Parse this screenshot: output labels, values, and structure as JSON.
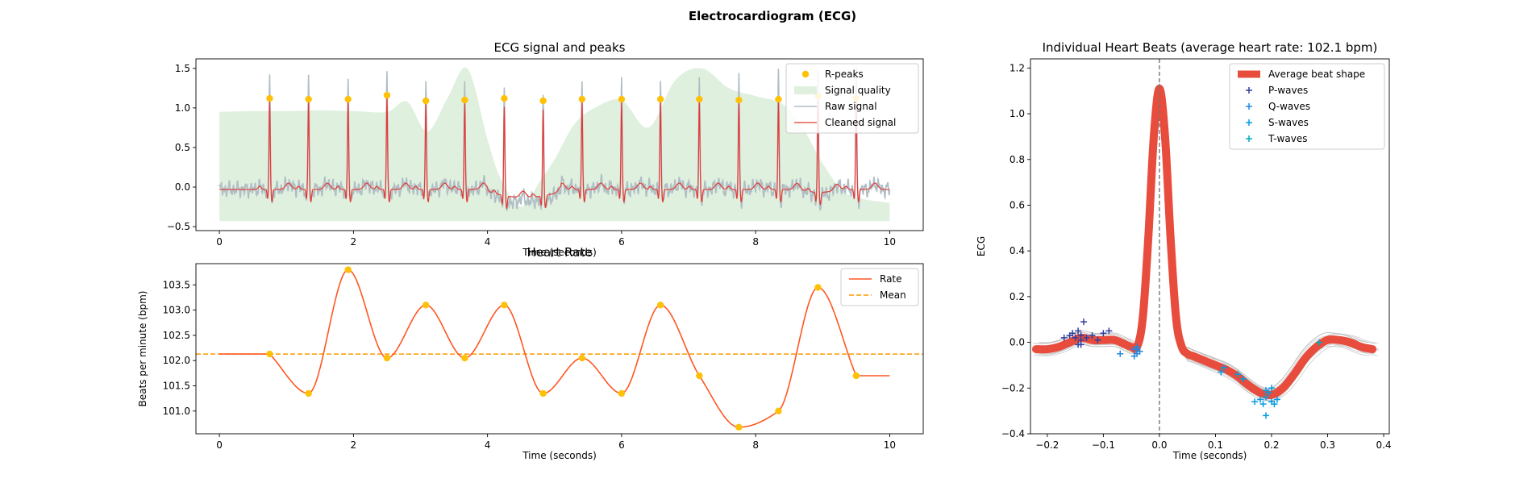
{
  "title": "Electrocardiogram (ECG)",
  "chart_data": [
    {
      "id": "ecg",
      "type": "line",
      "title": "ECG signal and peaks",
      "xlabel": "Time (seconds)",
      "ylabel": "",
      "xlim": [
        -0.35,
        10.5
      ],
      "ylim": [
        -0.55,
        1.62
      ],
      "xticks": [
        0,
        2,
        4,
        6,
        8,
        10
      ],
      "yticks": [
        -0.5,
        0.0,
        0.5,
        1.0,
        1.5
      ],
      "xtick_labels": [
        "0",
        "2",
        "4",
        "6",
        "8",
        "10"
      ],
      "ytick_labels": [
        "−0.5",
        "0.0",
        "0.5",
        "1.0",
        "1.5"
      ],
      "legend": [
        "R-peaks",
        "Signal quality",
        "Raw signal",
        "Cleaned signal"
      ],
      "legend_position": "top-right",
      "colors": {
        "peaks": "#FFC107",
        "quality": "#DFF0DF",
        "raw": "#B0BEC5",
        "clean": "#E53935"
      },
      "r_peaks": {
        "x": [
          0.75,
          1.33,
          1.92,
          2.5,
          3.08,
          3.66,
          4.25,
          4.83,
          5.41,
          6.0,
          6.58,
          7.16,
          7.75,
          8.34,
          8.93,
          9.5
        ],
        "y": [
          1.12,
          1.11,
          1.11,
          1.16,
          1.09,
          1.1,
          1.12,
          1.09,
          1.11,
          1.11,
          1.11,
          1.11,
          1.1,
          1.11,
          1.15,
          1.12
        ]
      },
      "signal_quality": {
        "x": [
          0.0,
          0.5,
          1.0,
          1.5,
          2.0,
          2.5,
          2.8,
          3.1,
          3.4,
          3.7,
          4.0,
          4.2,
          4.5,
          4.8,
          5.0,
          5.3,
          5.6,
          6.0,
          6.4,
          6.8,
          7.2,
          7.6,
          8.0,
          8.4,
          8.7,
          9.0,
          9.3,
          9.6,
          10.0
        ],
        "y": [
          0.95,
          0.96,
          0.96,
          0.97,
          0.96,
          0.95,
          1.08,
          0.7,
          1.12,
          1.5,
          0.6,
          0.1,
          -0.25,
          0.1,
          0.35,
          0.8,
          1.0,
          1.1,
          0.75,
          1.35,
          1.5,
          1.25,
          1.15,
          1.05,
          0.75,
          0.3,
          -0.05,
          -0.15,
          -0.2
        ]
      }
    },
    {
      "id": "hr",
      "type": "line",
      "title": "Heart Rate",
      "xlabel": "Time (seconds)",
      "ylabel": "Beats per minute (bpm)",
      "xlim": [
        -0.35,
        10.5
      ],
      "ylim": [
        100.55,
        103.92
      ],
      "xticks": [
        0,
        2,
        4,
        6,
        8,
        10
      ],
      "yticks": [
        101.0,
        101.5,
        102.0,
        102.5,
        103.0,
        103.5
      ],
      "xtick_labels": [
        "0",
        "2",
        "4",
        "6",
        "8",
        "10"
      ],
      "ytick_labels": [
        "101.0",
        "101.5",
        "102.0",
        "102.5",
        "103.0",
        "103.5"
      ],
      "legend": [
        "Rate",
        "Mean"
      ],
      "legend_position": "top-right",
      "mean": 102.13,
      "colors": {
        "rate": "#FF5722",
        "mean": "#FF9800",
        "points": "#FFC107"
      },
      "points": {
        "x": [
          0.75,
          1.33,
          1.92,
          2.5,
          3.08,
          3.66,
          4.25,
          4.83,
          5.41,
          6.0,
          6.58,
          7.16,
          7.75,
          8.34,
          8.93,
          9.5
        ],
        "y": [
          102.13,
          101.35,
          103.8,
          102.05,
          103.1,
          102.05,
          103.1,
          101.35,
          102.05,
          101.35,
          103.1,
          101.7,
          100.68,
          101.0,
          103.45,
          101.7
        ]
      },
      "line_start": [
        0.0,
        102.13
      ],
      "line_end": [
        10.0,
        101.7
      ]
    },
    {
      "id": "beats",
      "type": "line",
      "title": "Individual Heart Beats (average heart rate: 102.1 bpm)",
      "xlabel": "Time (seconds)",
      "ylabel": "ECG",
      "xlim": [
        -0.23,
        0.41
      ],
      "ylim": [
        -0.4,
        1.24
      ],
      "xticks": [
        -0.2,
        -0.1,
        0.0,
        0.1,
        0.2,
        0.3,
        0.4
      ],
      "yticks": [
        -0.4,
        -0.2,
        0.0,
        0.2,
        0.4,
        0.6,
        0.8,
        1.0,
        1.2
      ],
      "xtick_labels": [
        "−0.2",
        "−0.1",
        "0.0",
        "0.1",
        "0.2",
        "0.3",
        "0.4"
      ],
      "ytick_labels": [
        "−0.4",
        "−0.2",
        "0.0",
        "0.2",
        "0.4",
        "0.6",
        "0.8",
        "1.0",
        "1.2"
      ],
      "legend": [
        "Average beat shape",
        "P-waves",
        "Q-waves",
        "S-waves",
        "T-waves"
      ],
      "legend_position": "top-right",
      "colors": {
        "average": "#E74C3C",
        "p": "#303F9F",
        "q": "#1E88E5",
        "s": "#039BE5",
        "t": "#00ACC1",
        "beats": "#BDBDBD"
      },
      "average_beat": {
        "x": [
          -0.22,
          -0.2,
          -0.18,
          -0.16,
          -0.14,
          -0.12,
          -0.1,
          -0.08,
          -0.06,
          -0.05,
          -0.04,
          -0.03,
          -0.02,
          -0.01,
          0.0,
          0.01,
          0.02,
          0.03,
          0.04,
          0.05,
          0.06,
          0.08,
          0.1,
          0.12,
          0.14,
          0.16,
          0.18,
          0.2,
          0.22,
          0.24,
          0.26,
          0.28,
          0.3,
          0.32,
          0.34,
          0.36,
          0.38
        ],
        "y": [
          -0.03,
          -0.03,
          -0.02,
          0.0,
          0.02,
          0.01,
          0.01,
          0.01,
          -0.01,
          -0.02,
          -0.02,
          0.1,
          0.45,
          0.9,
          1.11,
          0.9,
          0.45,
          0.1,
          -0.02,
          -0.05,
          -0.06,
          -0.08,
          -0.1,
          -0.12,
          -0.15,
          -0.19,
          -0.22,
          -0.23,
          -0.2,
          -0.14,
          -0.07,
          -0.02,
          0.01,
          0.01,
          0.0,
          -0.02,
          -0.03
        ]
      },
      "p_waves": {
        "x": [
          -0.17,
          -0.16,
          -0.155,
          -0.15,
          -0.145,
          -0.14,
          -0.14,
          -0.135,
          -0.13,
          -0.12,
          -0.11,
          -0.1,
          -0.09,
          -0.14,
          -0.145
        ],
        "y": [
          0.02,
          0.03,
          0.04,
          0.02,
          0.05,
          0.01,
          -0.01,
          0.09,
          0.02,
          0.03,
          0.01,
          0.04,
          0.05,
          0.03,
          -0.01
        ]
      },
      "q_waves": {
        "x": [
          -0.07,
          -0.045,
          -0.04,
          -0.04,
          -0.035,
          -0.04,
          -0.045
        ],
        "y": [
          -0.05,
          -0.03,
          -0.05,
          -0.02,
          -0.04,
          -0.03,
          -0.06
        ]
      },
      "s_waves": {
        "x": [
          0.11,
          0.115,
          0.14,
          0.15,
          0.17,
          0.18,
          0.185,
          0.19,
          0.19,
          0.195,
          0.2,
          0.2,
          0.205,
          0.21,
          0.19
        ],
        "y": [
          -0.13,
          -0.11,
          -0.14,
          -0.16,
          -0.26,
          -0.25,
          -0.27,
          -0.24,
          -0.32,
          -0.22,
          -0.26,
          -0.2,
          -0.27,
          -0.25,
          -0.21
        ]
      },
      "t_waves": {
        "x": [
          0.285
        ],
        "y": [
          0.0
        ]
      }
    }
  ]
}
